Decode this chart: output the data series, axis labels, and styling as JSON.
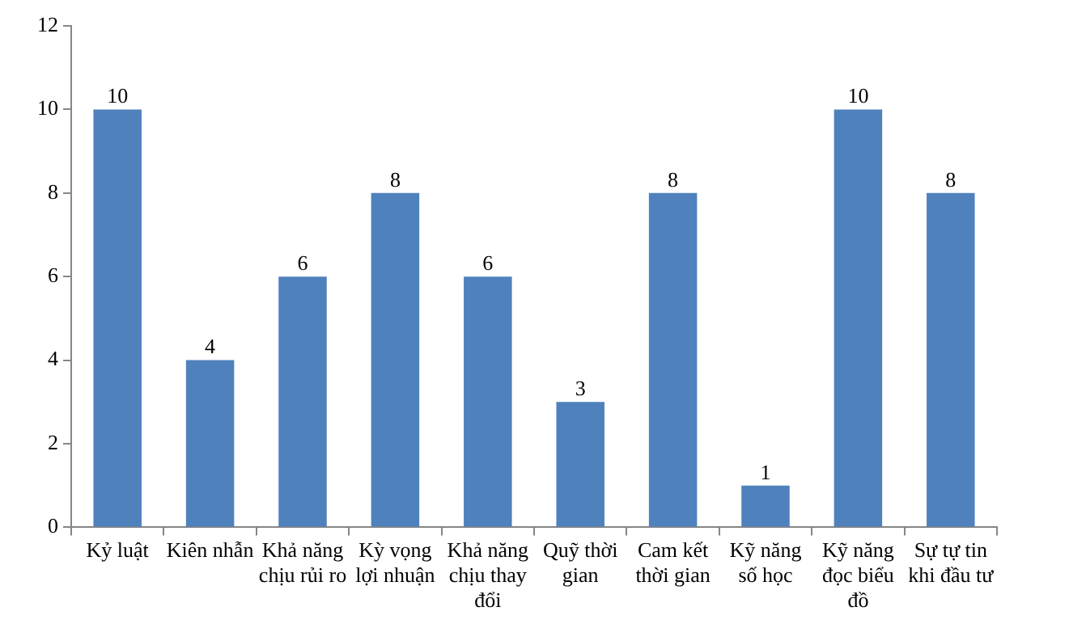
{
  "chart_data": {
    "type": "bar",
    "categories": [
      "Kỷ luật",
      "Kiên nhẫn",
      "Khả năng chịu rủi ro",
      "Kỳ vọng lợi nhuận",
      "Khả năng chịu thay đổi",
      "Quỹ thời gian",
      "Cam kết thời gian",
      "Kỹ năng số học",
      "Kỹ năng đọc biểu đồ",
      "Sự tự tin khi đầu tư"
    ],
    "values": [
      10,
      4,
      6,
      8,
      6,
      3,
      8,
      1,
      10,
      8
    ],
    "color": "#4f81bd",
    "ylim": [
      0,
      12
    ],
    "yticks": [
      0,
      2,
      4,
      6,
      8,
      10,
      12
    ],
    "grid": false,
    "data_labels": true,
    "legend": false
  }
}
